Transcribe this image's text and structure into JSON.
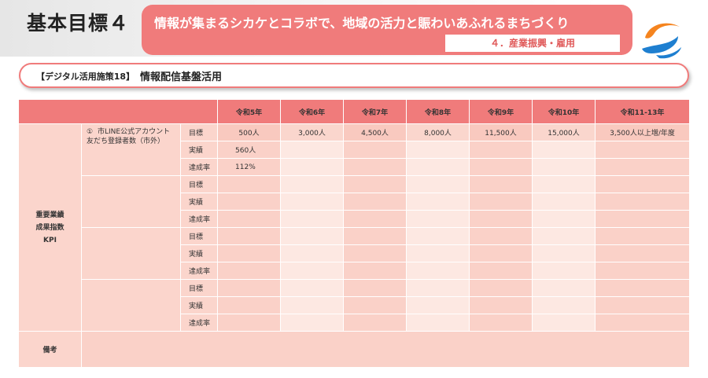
{
  "header": {
    "main_title": "基本目標４",
    "banner_text": "情報が集まるシカケとコラボで、地域の活力と賑わいあふれるまちづくり",
    "banner_sub": "４．産業振興・雇用"
  },
  "subtitle": {
    "tag": "【デジタル活用施策18】",
    "text": "情報配信基盤活用"
  },
  "table": {
    "year_headers": [
      "令和5年",
      "令和6年",
      "令和7年",
      "令和8年",
      "令和9年",
      "令和10年",
      "令和11-13年"
    ],
    "kpi_label": "重要業績\n成果指数\nKPI",
    "row_labels": [
      "目標",
      "実績",
      "達成率"
    ],
    "kpi1": {
      "number": "①",
      "name": "市LINE公式アカウント友だち登録者数（市外）",
      "target": [
        "500人",
        "3,000人",
        "4,500人",
        "8,000人",
        "11,500人",
        "15,000人",
        "3,500人以上増/年度"
      ],
      "actual": [
        "560人",
        "",
        "",
        "",
        "",
        "",
        ""
      ],
      "rate": [
        "112%",
        "",
        "",
        "",
        "",
        "",
        ""
      ]
    },
    "remarks_label": "備考"
  },
  "colors": {
    "accent": "#f07b7b",
    "cell_light": "#fbd5cc",
    "cell_pale": "#fde8e2",
    "logo_orange": "#f5841f",
    "logo_blue": "#1e7fd0"
  }
}
